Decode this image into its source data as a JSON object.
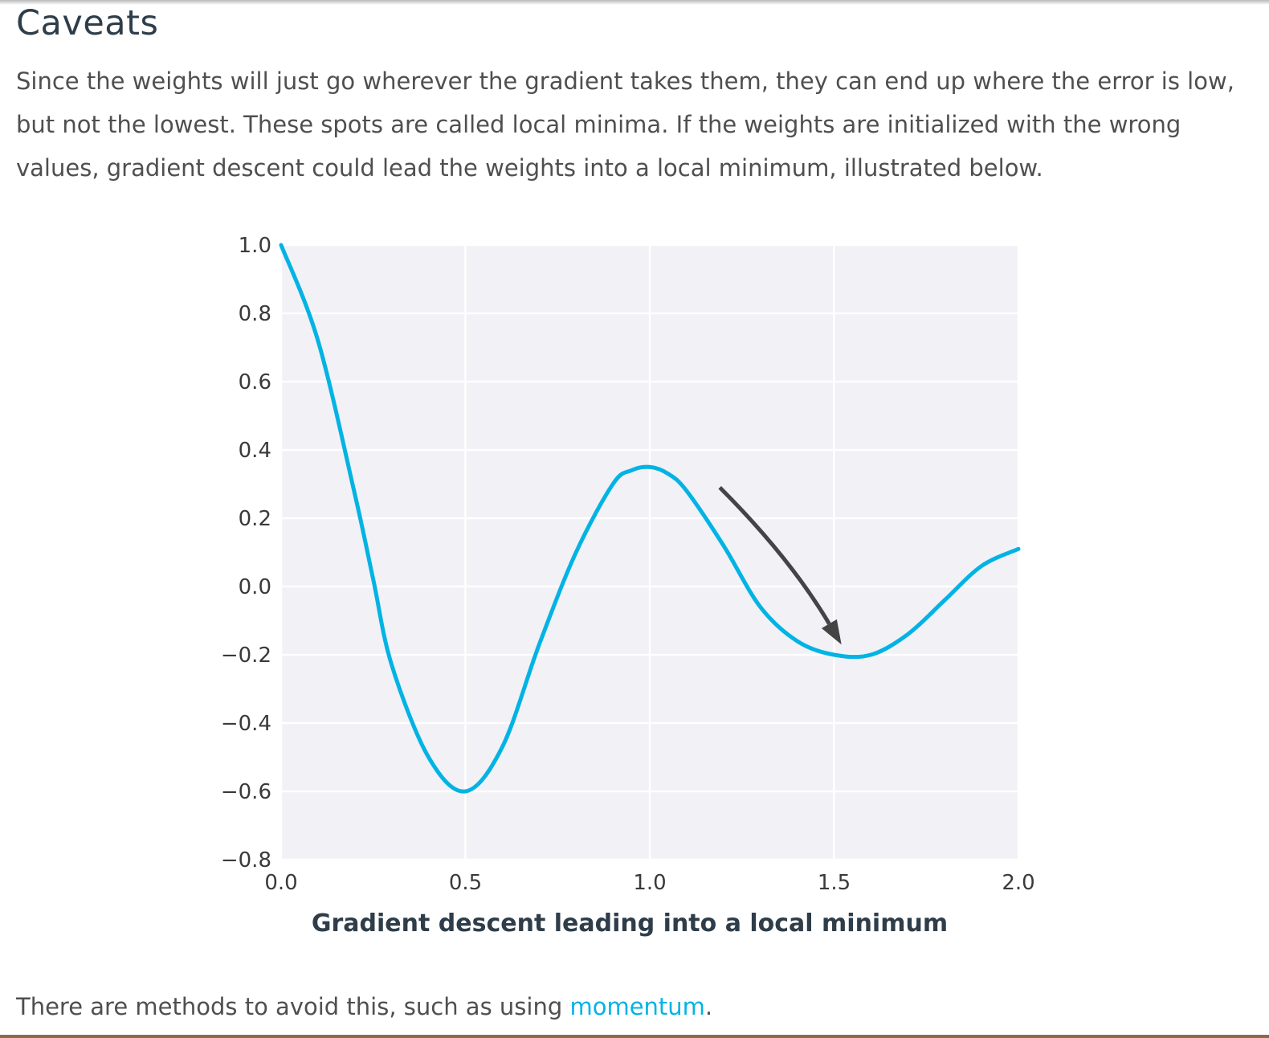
{
  "page": {
    "heading": "Caveats",
    "paragraph": "Since the weights will just go wherever the gradient takes them, they can end up where the error is low, but not the lowest. These spots are called local minima. If the weights are initialized with the wrong values, gradient descent could lead the weights into a local minimum, illustrated below.",
    "caption": "Gradient descent leading into a local minimum",
    "bottom_text_before": "There are methods to avoid this, such as using ",
    "bottom_link": "momentum",
    "bottom_text_after": ".",
    "link_color": "#02b3e4"
  },
  "chart_data": {
    "type": "line",
    "title": "",
    "xlabel": "",
    "ylabel": "",
    "xlim": [
      0.0,
      2.0
    ],
    "ylim": [
      -0.8,
      1.0
    ],
    "x_ticks": [
      "0.0",
      "0.5",
      "1.0",
      "1.5",
      "2.0"
    ],
    "y_ticks": [
      "1.0",
      "0.8",
      "0.6",
      "0.4",
      "0.2",
      "0.0",
      "−0.2",
      "−0.4",
      "−0.6",
      "−0.8"
    ],
    "grid": true,
    "series": [
      {
        "color": "#02b3e4",
        "x": [
          0.0,
          0.1,
          0.2,
          0.25,
          0.3,
          0.4,
          0.5,
          0.6,
          0.7,
          0.8,
          0.9,
          0.95,
          1.0,
          1.05,
          1.1,
          1.2,
          1.3,
          1.4,
          1.5,
          1.6,
          1.7,
          1.8,
          1.9,
          2.0
        ],
        "y": [
          1.0,
          0.72,
          0.27,
          0.02,
          -0.23,
          -0.5,
          -0.6,
          -0.47,
          -0.17,
          0.1,
          0.3,
          0.34,
          0.35,
          0.33,
          0.28,
          0.12,
          -0.06,
          -0.16,
          -0.2,
          -0.2,
          -0.14,
          -0.04,
          0.06,
          0.11
        ]
      }
    ],
    "annotation": {
      "type": "arrow",
      "color": "#444444",
      "from": [
        1.19,
        0.29
      ],
      "to": [
        1.52,
        -0.17
      ]
    }
  }
}
